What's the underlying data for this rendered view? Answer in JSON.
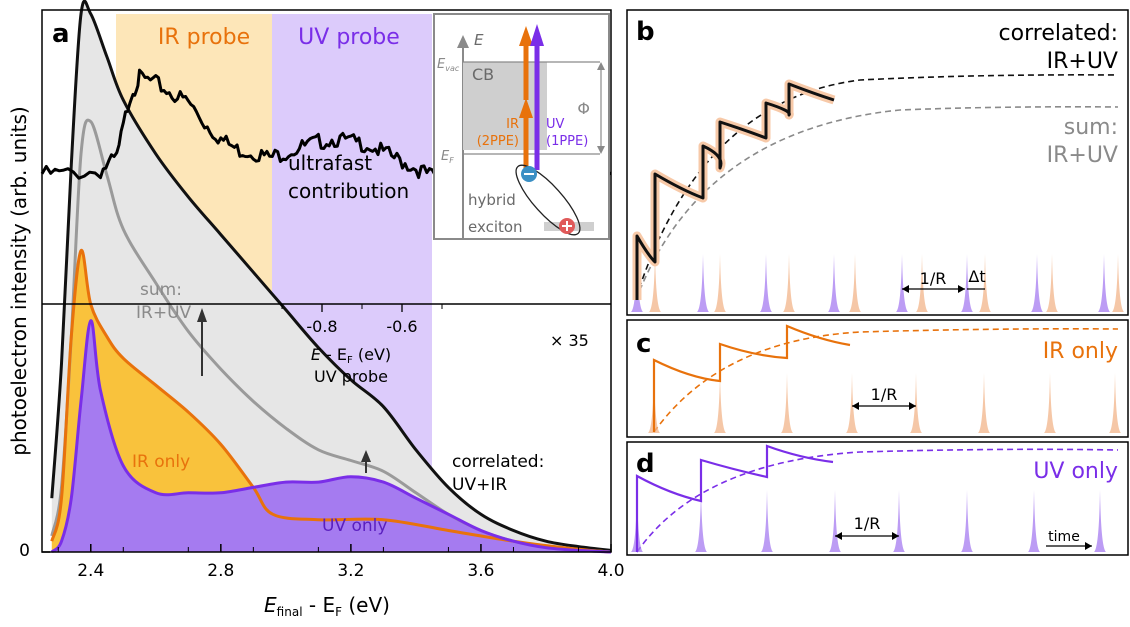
{
  "panel_a": {
    "label": "a",
    "ylabel": "photoelectron intensity (arb. units)",
    "xlabel_parts": [
      "E",
      "final",
      " - E",
      "F",
      " (eV)"
    ],
    "y_tick_zero": "0",
    "band_ir_label": "IR probe",
    "band_uv_label": "UV probe",
    "label_sum_1": "sum:",
    "label_sum_2": "IR+UV",
    "label_ir_only": "IR only",
    "label_uv_only": "UV only",
    "label_correlated_1": "correlated:",
    "label_correlated_2": "UV+IR",
    "label_ultrafast_1": "ultrafast",
    "label_ultrafast_2": "contribution",
    "scale_label": "× 35",
    "inset_axis_parts": [
      "E",
      " - E",
      "F",
      " (eV)"
    ],
    "inset_axis_subtitle": "UV probe",
    "inset_ticks": [
      "-0.8",
      "-0.6"
    ],
    "diagram": {
      "E": "E",
      "Evac_parts": [
        "E",
        "vac"
      ],
      "EF_parts": [
        "E",
        "F"
      ],
      "CB": "CB",
      "phi": "Φ",
      "ir_1": "IR",
      "ir_2": "(2PPE)",
      "uv_1": "UV",
      "uv_2": "(1PPE)",
      "hybrid": "hybrid",
      "exciton": "exciton"
    }
  },
  "panel_b": {
    "label": "b",
    "label_correlated_1": "correlated:",
    "label_correlated_2": "IR+UV",
    "label_sum_1": "sum:",
    "label_sum_2": "IR+UV",
    "period_label": "1/R",
    "delay_label": "Δt"
  },
  "panel_c": {
    "label": "c",
    "title": "IR only",
    "period_label": "1/R"
  },
  "panel_d": {
    "label": "d",
    "title": "UV only",
    "period_label": "1/R",
    "time_label": "time"
  },
  "colors": {
    "ir": "#e8720c",
    "ir_fill": "#f9c23c",
    "ir_band": "#fde6b8",
    "uv": "#7a2ee8",
    "uv_fill": "#a57bf0",
    "uv_band": "#dccbfb",
    "sum": "#9a9a9a",
    "sum_fill": "#e6e6e6",
    "correlated": "#111111"
  },
  "chart_data": {
    "type": "line",
    "xlim": [
      2.25,
      4.0
    ],
    "x_ticks": [
      "2.4",
      "2.8",
      "3.2",
      "3.6",
      "4.0"
    ],
    "ylim": [
      0,
      1
    ],
    "series": [
      {
        "name": "correlated: UV+IR",
        "x": [
          2.28,
          2.31,
          2.34,
          2.37,
          2.4,
          2.45,
          2.5,
          2.6,
          2.7,
          2.8,
          2.9,
          3.0,
          3.1,
          3.2,
          3.3,
          3.4,
          3.5,
          3.6,
          3.7,
          3.8,
          3.9,
          4.0
        ],
        "y": [
          0.1,
          0.35,
          0.72,
          1.0,
          1.0,
          0.92,
          0.84,
          0.74,
          0.66,
          0.59,
          0.52,
          0.45,
          0.38,
          0.32,
          0.27,
          0.19,
          0.12,
          0.07,
          0.04,
          0.02,
          0.01,
          0.003
        ]
      },
      {
        "name": "sum: IR+UV",
        "x": [
          2.28,
          2.31,
          2.34,
          2.37,
          2.4,
          2.45,
          2.5,
          2.6,
          2.7,
          2.8,
          2.9,
          3.0,
          3.1,
          3.2,
          3.3,
          3.4,
          3.5,
          3.6,
          3.7,
          3.8,
          3.9,
          4.0
        ],
        "y": [
          0.03,
          0.12,
          0.4,
          0.74,
          0.8,
          0.7,
          0.6,
          0.5,
          0.41,
          0.34,
          0.28,
          0.23,
          0.19,
          0.17,
          0.15,
          0.11,
          0.07,
          0.04,
          0.02,
          0.01,
          0.004,
          0.0
        ]
      },
      {
        "name": "IR only",
        "x": [
          2.28,
          2.31,
          2.34,
          2.37,
          2.4,
          2.45,
          2.5,
          2.6,
          2.7,
          2.8,
          2.9,
          2.96,
          3.1,
          3.3,
          3.5,
          3.7,
          3.9,
          4.0
        ],
        "y": [
          0.02,
          0.1,
          0.4,
          0.56,
          0.46,
          0.4,
          0.36,
          0.31,
          0.26,
          0.2,
          0.12,
          0.07,
          0.06,
          0.06,
          0.04,
          0.02,
          0.005,
          0.0
        ]
      },
      {
        "name": "UV only",
        "x": [
          2.28,
          2.31,
          2.34,
          2.37,
          2.4,
          2.43,
          2.5,
          2.6,
          2.7,
          2.8,
          2.9,
          3.0,
          3.1,
          3.2,
          3.3,
          3.4,
          3.5,
          3.6,
          3.7,
          3.8,
          3.9,
          4.0
        ],
        "y": [
          0.0,
          0.02,
          0.1,
          0.28,
          0.43,
          0.3,
          0.16,
          0.11,
          0.11,
          0.11,
          0.12,
          0.13,
          0.13,
          0.14,
          0.13,
          0.1,
          0.07,
          0.04,
          0.02,
          0.008,
          0.003,
          0.0
        ]
      },
      {
        "name": "ultrafast contribution",
        "x_inset": [
          -0.8,
          -0.6
        ],
        "x": [
          2.25,
          2.33,
          2.43,
          2.48,
          2.52,
          2.55,
          2.6,
          2.65,
          2.7,
          2.75,
          2.8,
          2.85,
          2.9,
          2.95,
          3.0,
          3.05,
          3.1,
          3.15,
          3.2,
          3.25,
          3.3,
          3.35,
          3.4,
          3.45,
          3.5,
          3.55,
          3.6,
          3.7,
          3.8,
          3.9,
          4.0
        ],
        "y": [
          0.61,
          0.61,
          0.62,
          0.67,
          0.9,
          0.97,
          0.95,
          0.91,
          0.88,
          0.8,
          0.74,
          0.7,
          0.69,
          0.67,
          0.69,
          0.71,
          0.73,
          0.74,
          0.73,
          0.72,
          0.69,
          0.66,
          0.63,
          0.6,
          0.6,
          0.59,
          0.57,
          0.56,
          0.58,
          0.6,
          0.61
        ]
      }
    ]
  }
}
